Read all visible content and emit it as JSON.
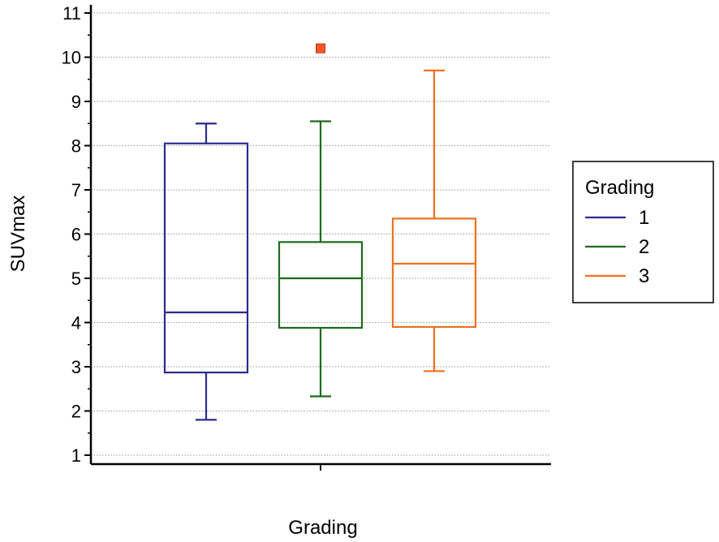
{
  "chart_data": {
    "type": "box",
    "xlabel": "Grading",
    "ylabel": "SUVmax",
    "ylim": [
      1,
      11
    ],
    "yticks": [
      "1",
      "2",
      "3",
      "4",
      "5",
      "6",
      "7",
      "8",
      "9",
      "10",
      "11"
    ],
    "grid": "horizontal-dotted",
    "legend": {
      "title": "Grading",
      "placement": "right",
      "entries": [
        "1",
        "2",
        "3"
      ]
    },
    "series": [
      {
        "name": "1",
        "color": "#2b2b8f",
        "min": 1.8,
        "q1": 2.87,
        "median": 4.23,
        "q3": 8.05,
        "max": 8.5,
        "outliers": []
      },
      {
        "name": "2",
        "color": "#1e6b1e",
        "min": 2.33,
        "q1": 3.88,
        "median": 5.0,
        "q3": 5.82,
        "max": 8.55,
        "outliers": [
          10.2
        ]
      },
      {
        "name": "3",
        "color": "#f07020",
        "min": 2.9,
        "q1": 3.9,
        "median": 5.33,
        "q3": 6.35,
        "max": 9.7,
        "outliers": []
      }
    ],
    "outlier_color": "#ff5a1e"
  }
}
